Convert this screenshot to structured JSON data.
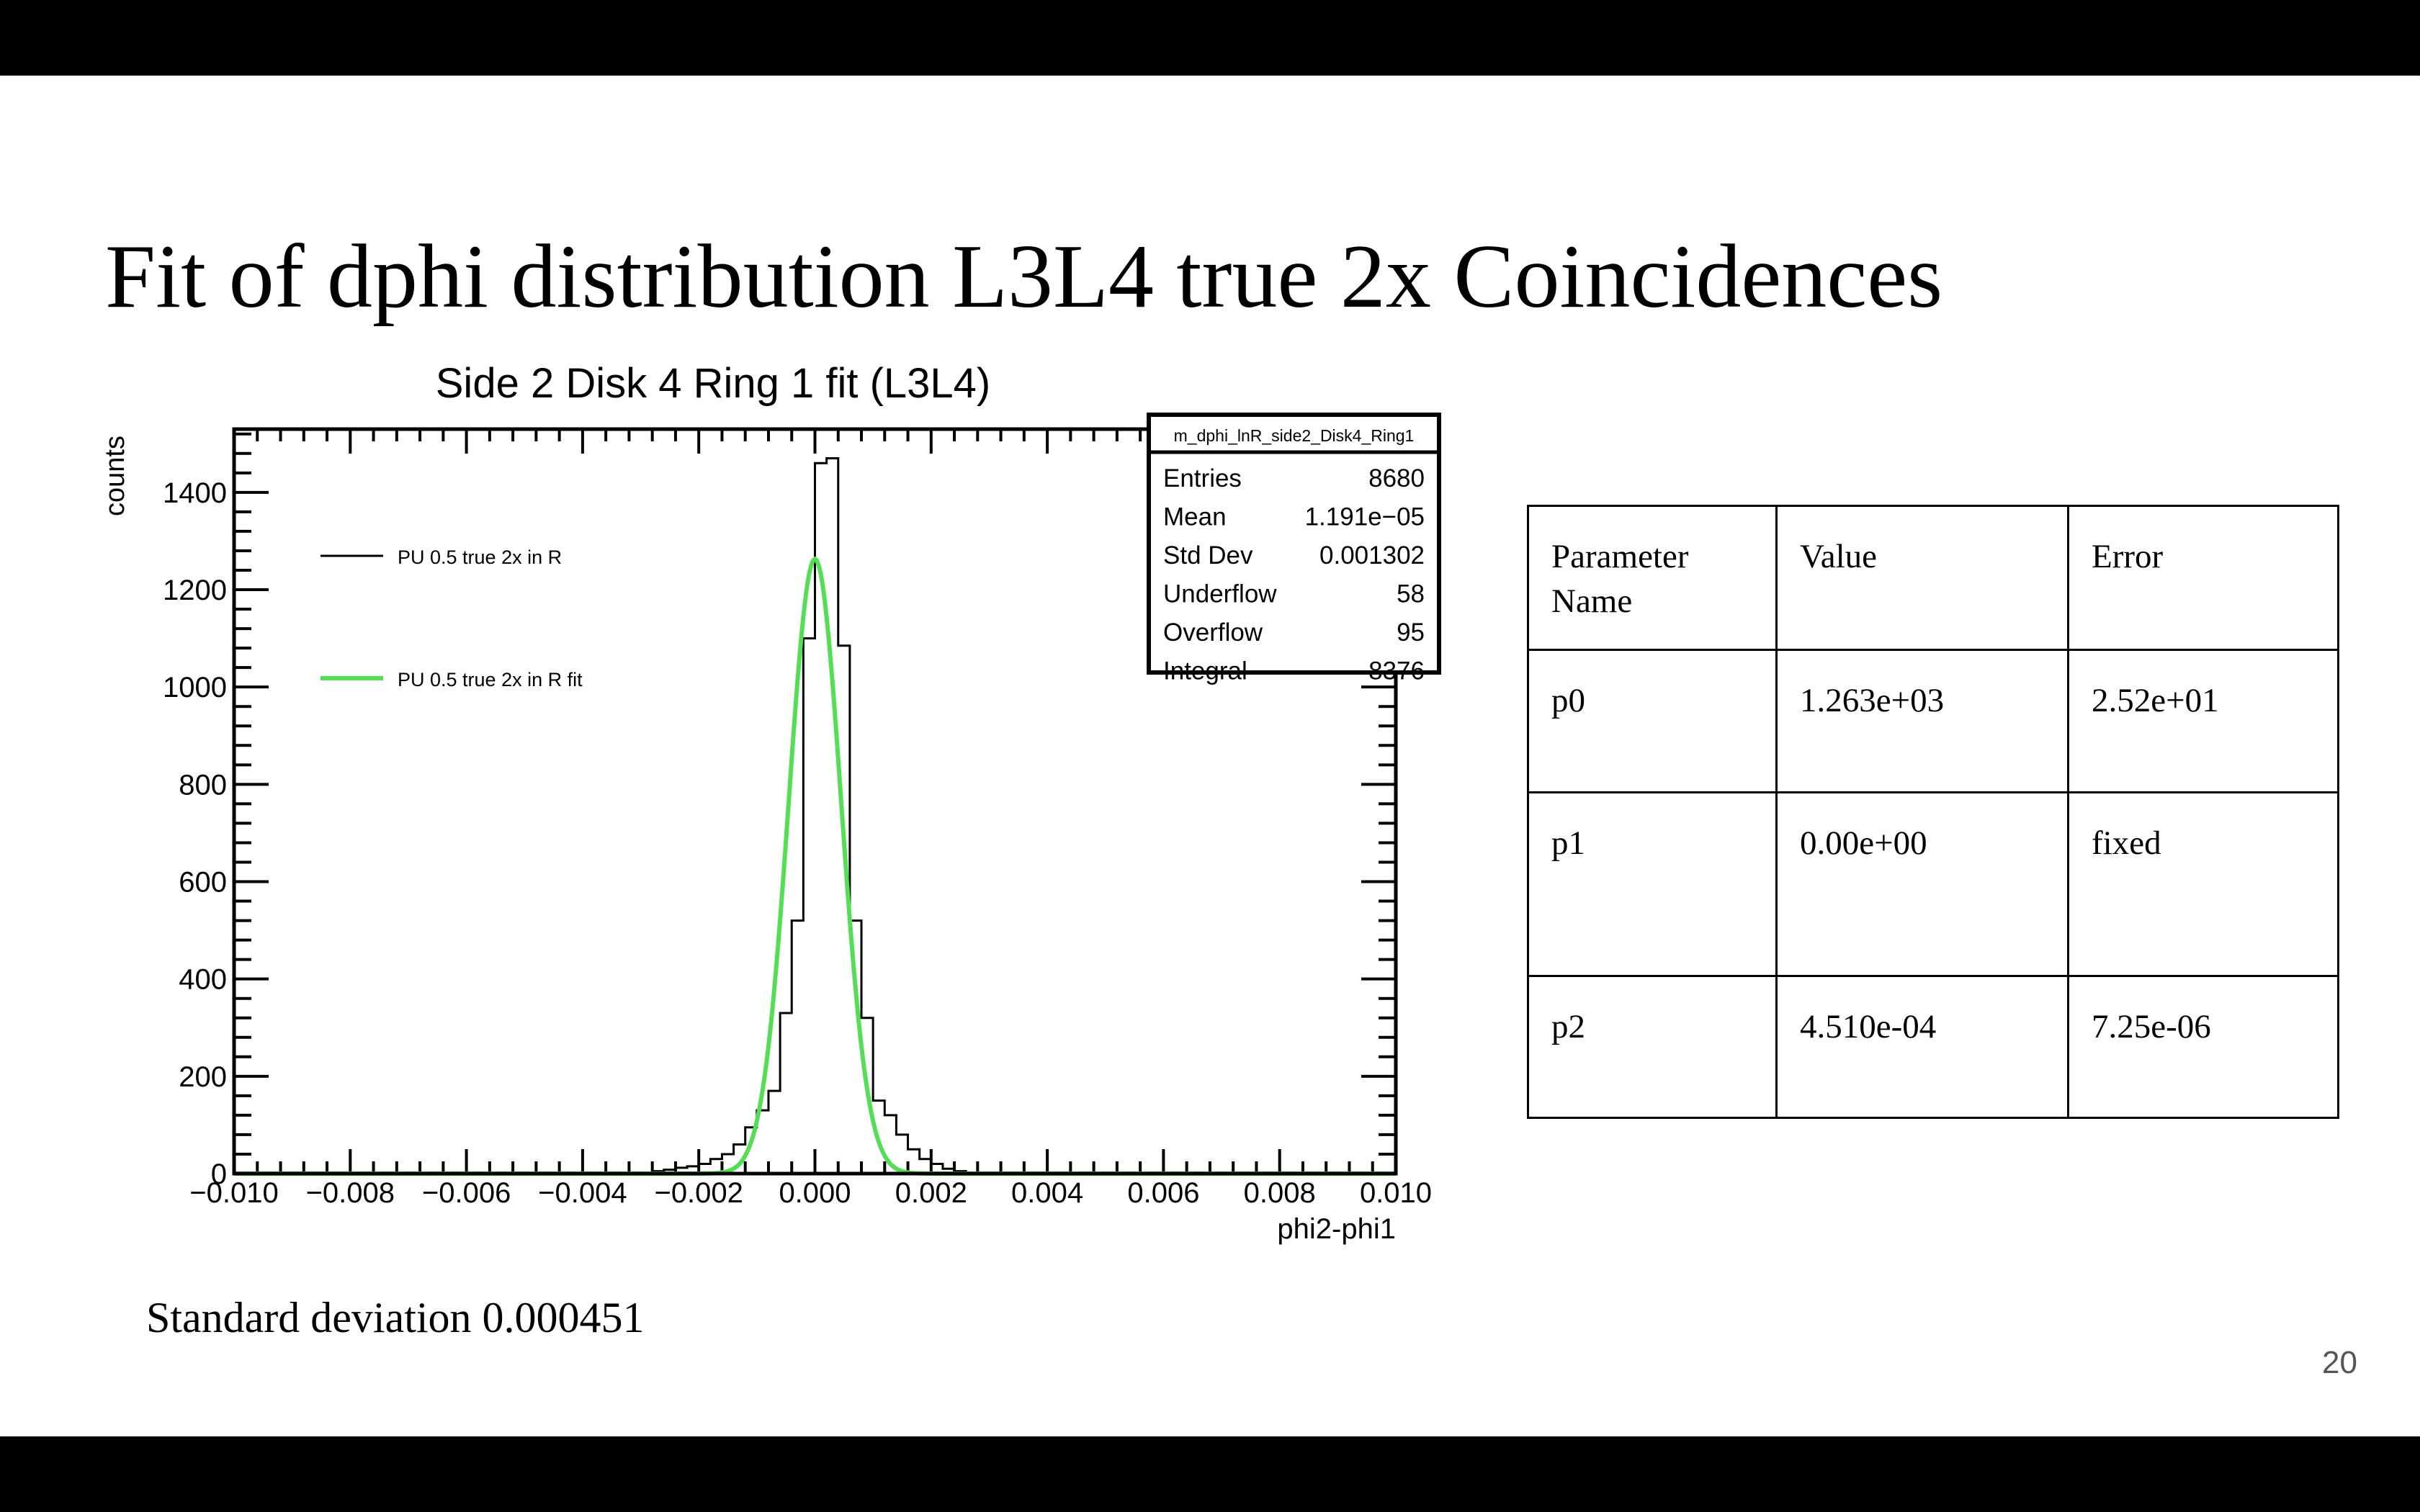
{
  "slide": {
    "title": "Fit of dphi distribution L3L4 true 2x Coincidences",
    "note": "Standard deviation 0.000451",
    "page_number": "20"
  },
  "chart_data": {
    "type": "histogram",
    "title": "Side 2 Disk 4 Ring 1 fit (L3L4)",
    "xlabel": "phi2-phi1",
    "ylabel": "counts",
    "xlim": [
      -0.01,
      0.01
    ],
    "ylim": [
      0,
      1530
    ],
    "xticks": [
      "−0.010",
      "−0.008",
      "−0.006",
      "−0.004",
      "−0.002",
      "0.000",
      "0.002",
      "0.004",
      "0.006",
      "0.008",
      "0.010"
    ],
    "yticks": [
      "0",
      "200",
      "400",
      "600",
      "800",
      "1000",
      "1200",
      "1400"
    ],
    "grid": false,
    "legend_position": "top-left",
    "bin_width": 0.0002,
    "series": [
      {
        "name": "PU 0.5 true 2x in R",
        "color": "#000000",
        "style": "step",
        "bin_edges": [
          -0.0028,
          -0.0026,
          -0.0024,
          -0.0022,
          -0.002,
          -0.0018,
          -0.0016,
          -0.0014,
          -0.0012,
          -0.001,
          -0.0008,
          -0.0006,
          -0.0004,
          -0.0002,
          0.0,
          0.0002,
          0.0004,
          0.0006,
          0.0008,
          0.001,
          0.0012,
          0.0014,
          0.0016,
          0.0018,
          0.002,
          0.0022,
          0.0024,
          0.0026
        ],
        "counts": [
          5,
          8,
          12,
          15,
          20,
          30,
          40,
          60,
          95,
          130,
          170,
          330,
          520,
          1100,
          1460,
          1470,
          1085,
          520,
          320,
          150,
          120,
          80,
          50,
          30,
          20,
          10,
          5
        ]
      },
      {
        "name": "PU 0.5 true 2x in R fit",
        "color": "#55dd55",
        "style": "gaussian",
        "p0": 1263,
        "p1": 0.0,
        "p2": 0.000451
      }
    ],
    "stats_box": {
      "title": "m_dphi_lnR_side2_Disk4_Ring1",
      "rows": [
        {
          "label": "Entries",
          "value": "8680"
        },
        {
          "label": "Mean",
          "value": "1.191e−05"
        },
        {
          "label": "Std Dev",
          "value": "0.001302"
        },
        {
          "label": "Underflow",
          "value": "58"
        },
        {
          "label": "Overflow",
          "value": "95"
        },
        {
          "label": "Integral",
          "value": "8376"
        }
      ]
    }
  },
  "fit_table": {
    "header": {
      "name": "Parameter Name",
      "value": "Value",
      "error": "Error"
    },
    "rows": [
      {
        "name": "p0",
        "value": "1.263e+03",
        "error": "2.52e+01"
      },
      {
        "name": "p1",
        "value": "0.00e+00",
        "error": "fixed"
      },
      {
        "name": "p2",
        "value": "4.510e-04",
        "error": "7.25e-06"
      }
    ]
  }
}
